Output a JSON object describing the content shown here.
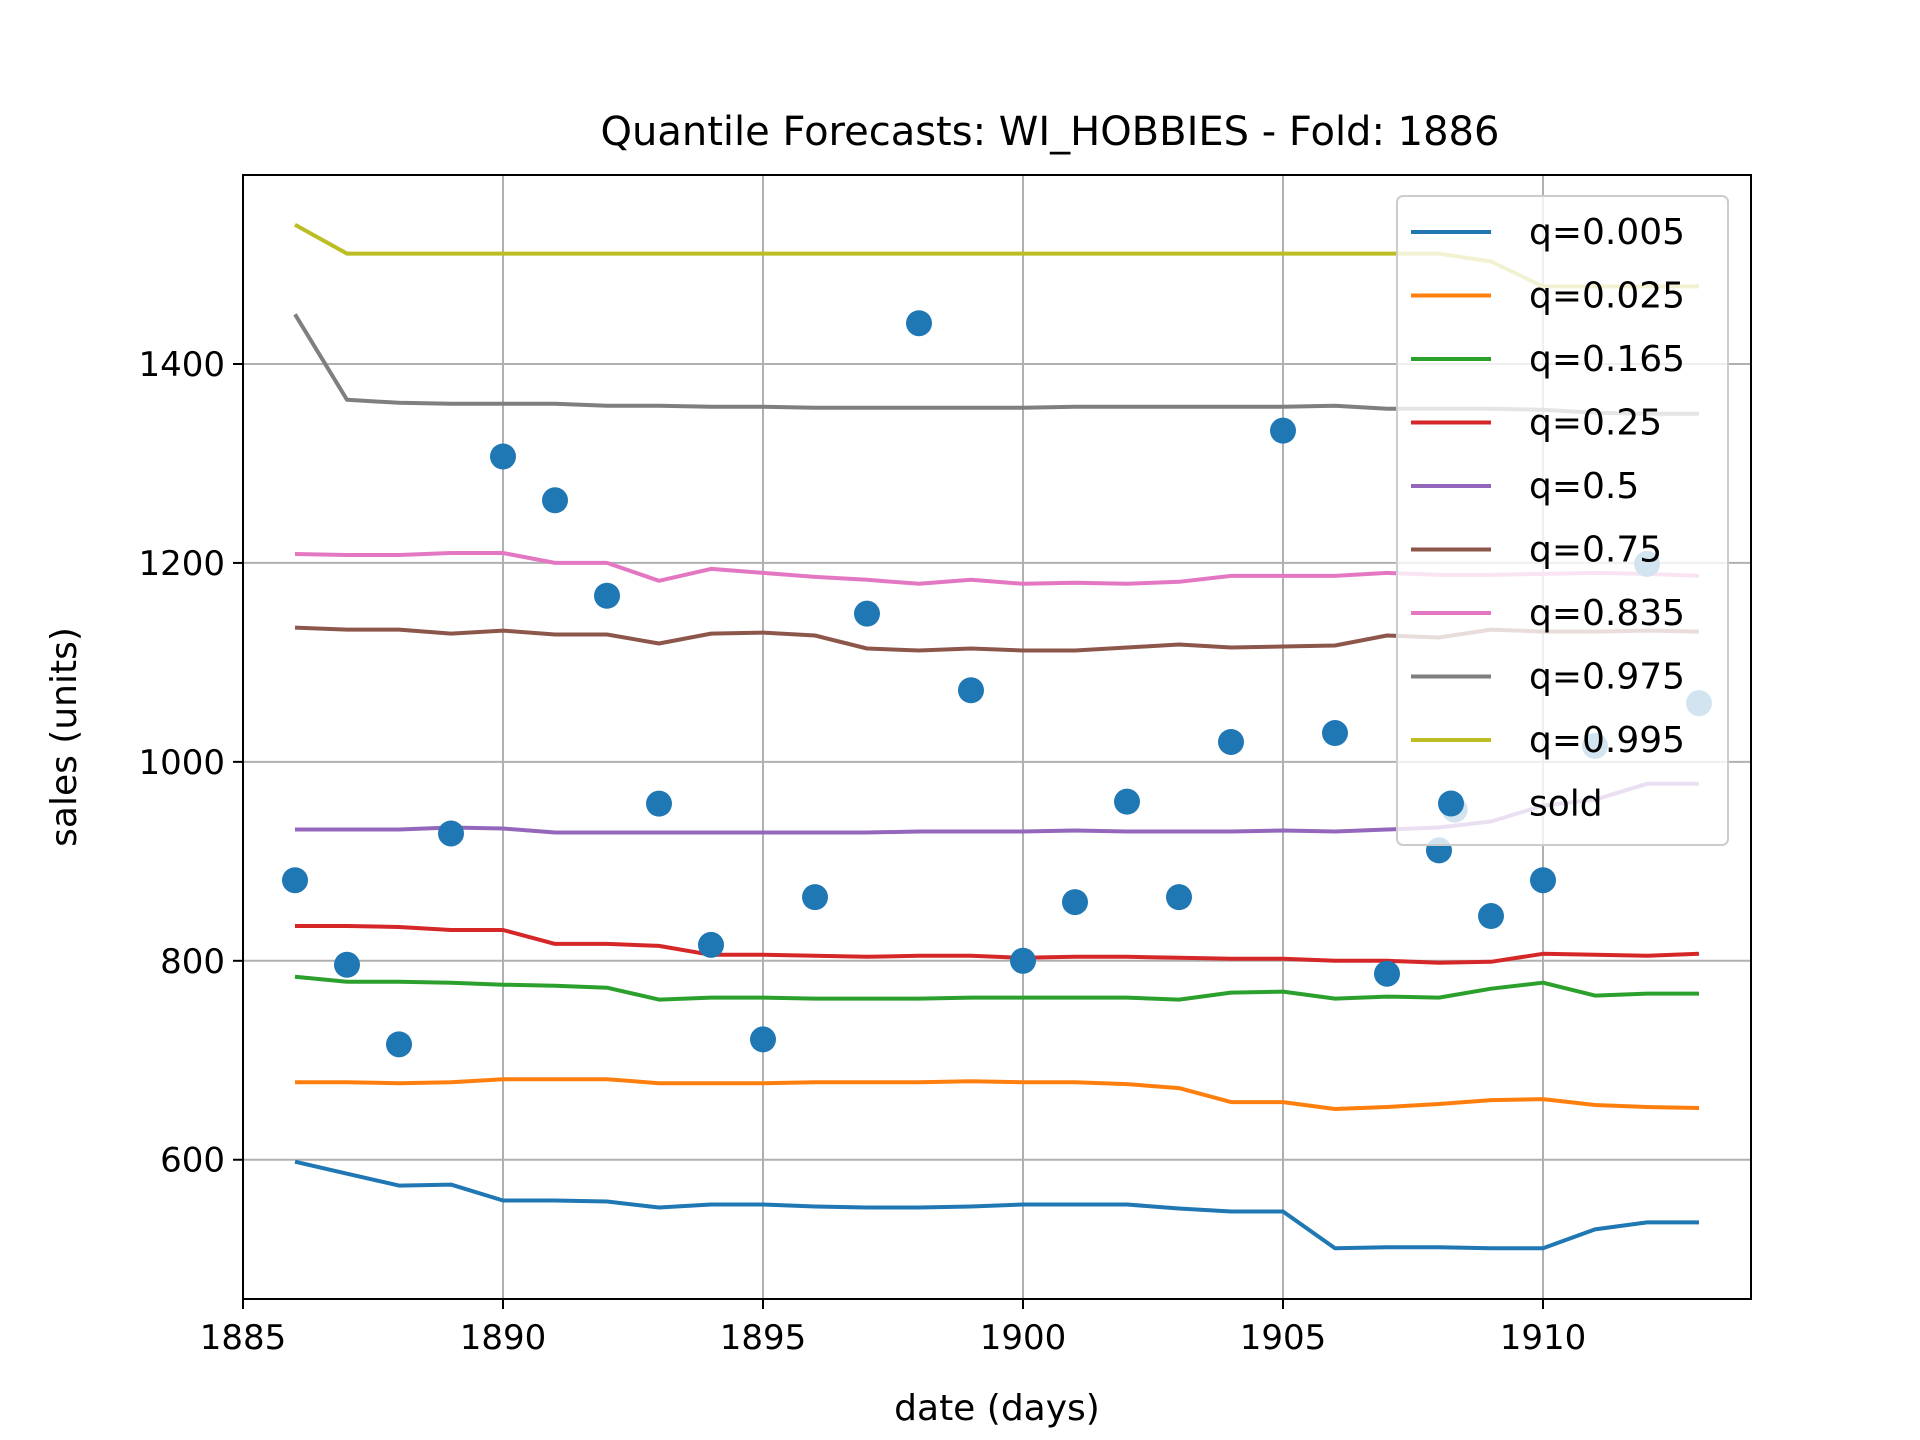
{
  "chart_data": {
    "type": "line",
    "title": "Quantile Forecasts: WI_HOBBIES - Fold: 1886",
    "xlabel": "date (days)",
    "ylabel": "sales (units)",
    "xlim": [
      1885,
      1914
    ],
    "ylim": [
      460,
      1590
    ],
    "xticks": [
      1885,
      1890,
      1895,
      1900,
      1905,
      1910
    ],
    "yticks": [
      600,
      800,
      1000,
      1200,
      1400
    ],
    "grid": true,
    "legend_position": "upper-right",
    "x": [
      1886,
      1887,
      1888,
      1889,
      1890,
      1891,
      1892,
      1893,
      1894,
      1895,
      1896,
      1897,
      1898,
      1899,
      1900,
      1901,
      1902,
      1903,
      1904,
      1905,
      1906,
      1907,
      1908,
      1909,
      1910,
      1911,
      1912,
      1913
    ],
    "series": [
      {
        "name": "q=0.005",
        "color": "#1f77b4",
        "values": [
          598,
          586,
          574,
          575,
          559,
          559,
          558,
          552,
          555,
          555,
          553,
          552,
          552,
          553,
          555,
          555,
          555,
          551,
          548,
          548,
          511,
          512,
          512,
          511,
          511,
          530,
          537,
          537
        ]
      },
      {
        "name": "q=0.025",
        "color": "#ff7f0e",
        "values": [
          678,
          678,
          677,
          678,
          681,
          681,
          681,
          677,
          677,
          677,
          678,
          678,
          678,
          679,
          678,
          678,
          676,
          672,
          658,
          658,
          651,
          653,
          656,
          660,
          661,
          655,
          653,
          652
        ]
      },
      {
        "name": "q=0.165",
        "color": "#2ca02c",
        "values": [
          784,
          779,
          779,
          778,
          776,
          775,
          773,
          761,
          763,
          763,
          762,
          762,
          762,
          763,
          763,
          763,
          763,
          761,
          768,
          769,
          762,
          764,
          763,
          772,
          778,
          765,
          767,
          767
        ]
      },
      {
        "name": "q=0.25",
        "color": "#d62728",
        "values": [
          835,
          835,
          834,
          831,
          831,
          817,
          817,
          815,
          806,
          806,
          805,
          804,
          805,
          805,
          803,
          804,
          804,
          803,
          802,
          802,
          800,
          800,
          798,
          799,
          807,
          806,
          805,
          807
        ]
      },
      {
        "name": "q=0.5",
        "color": "#9467bd",
        "values": [
          932,
          932,
          932,
          934,
          933,
          929,
          929,
          929,
          929,
          929,
          929,
          929,
          930,
          930,
          930,
          931,
          930,
          930,
          930,
          931,
          930,
          932,
          934,
          940,
          956,
          962,
          978,
          978
        ]
      },
      {
        "name": "q=0.75",
        "color": "#8c564b",
        "values": [
          1135,
          1133,
          1133,
          1129,
          1132,
          1128,
          1128,
          1119,
          1129,
          1130,
          1127,
          1114,
          1112,
          1114,
          1112,
          1112,
          1115,
          1118,
          1115,
          1116,
          1117,
          1127,
          1125,
          1133,
          1131,
          1131,
          1132,
          1131
        ]
      },
      {
        "name": "q=0.835",
        "color": "#e377c2",
        "values": [
          1209,
          1208,
          1208,
          1210,
          1210,
          1200,
          1200,
          1182,
          1194,
          1190,
          1186,
          1183,
          1179,
          1183,
          1179,
          1180,
          1179,
          1181,
          1187,
          1187,
          1187,
          1190,
          1188,
          1188,
          1189,
          1190,
          1189,
          1187
        ]
      },
      {
        "name": "q=0.975",
        "color": "#7f7f7f",
        "values": [
          1450,
          1364,
          1361,
          1360,
          1360,
          1360,
          1358,
          1358,
          1357,
          1357,
          1356,
          1356,
          1356,
          1356,
          1356,
          1357,
          1357,
          1357,
          1357,
          1357,
          1358,
          1355,
          1355,
          1355,
          1354,
          1351,
          1350,
          1350
        ]
      },
      {
        "name": "q=0.995",
        "color": "#bcbd22",
        "values": [
          1540,
          1511,
          1511,
          1511,
          1511,
          1511,
          1511,
          1511,
          1511,
          1511,
          1511,
          1511,
          1511,
          1511,
          1511,
          1511,
          1511,
          1511,
          1511,
          1511,
          1511,
          1511,
          1511,
          1503,
          1478,
          1478,
          1478,
          1478
        ]
      }
    ],
    "scatter": {
      "name": "sold",
      "color": "#1f77b4",
      "points": [
        [
          1886,
          881
        ],
        [
          1887,
          796
        ],
        [
          1888,
          716
        ],
        [
          1889,
          928
        ],
        [
          1890,
          1307
        ],
        [
          1891,
          1263
        ],
        [
          1892,
          1167
        ],
        [
          1893,
          958
        ],
        [
          1894,
          816
        ],
        [
          1895,
          721
        ],
        [
          1896,
          864
        ],
        [
          1897,
          1149
        ],
        [
          1898,
          1441
        ],
        [
          1899,
          1072
        ],
        [
          1900,
          800
        ],
        [
          1901,
          859
        ],
        [
          1902,
          960
        ],
        [
          1903,
          864
        ],
        [
          1904,
          1020
        ],
        [
          1905,
          1333
        ],
        [
          1906,
          1029
        ],
        [
          1907,
          787
        ],
        [
          1908,
          911
        ],
        [
          1908.3,
          952
        ],
        [
          1909,
          845
        ],
        [
          1910,
          881
        ],
        [
          1911,
          1016
        ],
        [
          1912,
          1199
        ],
        [
          1913,
          1059
        ]
      ]
    }
  }
}
